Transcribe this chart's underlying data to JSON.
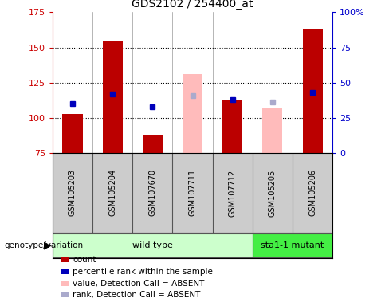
{
  "title": "GDS2102 / 254400_at",
  "samples": [
    "GSM105203",
    "GSM105204",
    "GSM107670",
    "GSM107711",
    "GSM107712",
    "GSM105205",
    "GSM105206"
  ],
  "count_values": [
    103,
    155,
    88,
    null,
    113,
    null,
    163
  ],
  "count_absent_values": [
    null,
    null,
    null,
    131,
    null,
    107,
    null
  ],
  "percentile_rank": [
    110,
    117,
    108,
    null,
    113,
    null,
    118
  ],
  "percentile_rank_absent": [
    null,
    null,
    null,
    116,
    null,
    111,
    null
  ],
  "ylim_left": [
    75,
    175
  ],
  "ylim_right": [
    0,
    100
  ],
  "yticks_left": [
    75,
    100,
    125,
    150,
    175
  ],
  "yticks_right": [
    0,
    25,
    50,
    75,
    100
  ],
  "ytick_labels_right": [
    "0",
    "25",
    "50",
    "75",
    "100%"
  ],
  "bar_width": 0.5,
  "count_color": "#bb0000",
  "count_absent_color": "#ffbbbb",
  "rank_color": "#0000bb",
  "rank_absent_color": "#aaaacc",
  "genotype_groups": [
    {
      "label": "wild type",
      "start": 0,
      "end": 5,
      "color": "#ccffcc"
    },
    {
      "label": "sta1-1 mutant",
      "start": 5,
      "end": 7,
      "color": "#44ee44"
    }
  ],
  "legend_items": [
    {
      "label": "count",
      "color": "#bb0000"
    },
    {
      "label": "percentile rank within the sample",
      "color": "#0000bb"
    },
    {
      "label": "value, Detection Call = ABSENT",
      "color": "#ffbbbb"
    },
    {
      "label": "rank, Detection Call = ABSENT",
      "color": "#aaaacc"
    }
  ],
  "genotype_label": "genotype/variation",
  "tick_color_left": "#cc0000",
  "tick_color_right": "#0000cc",
  "grid_lines": [
    100,
    125,
    150
  ]
}
